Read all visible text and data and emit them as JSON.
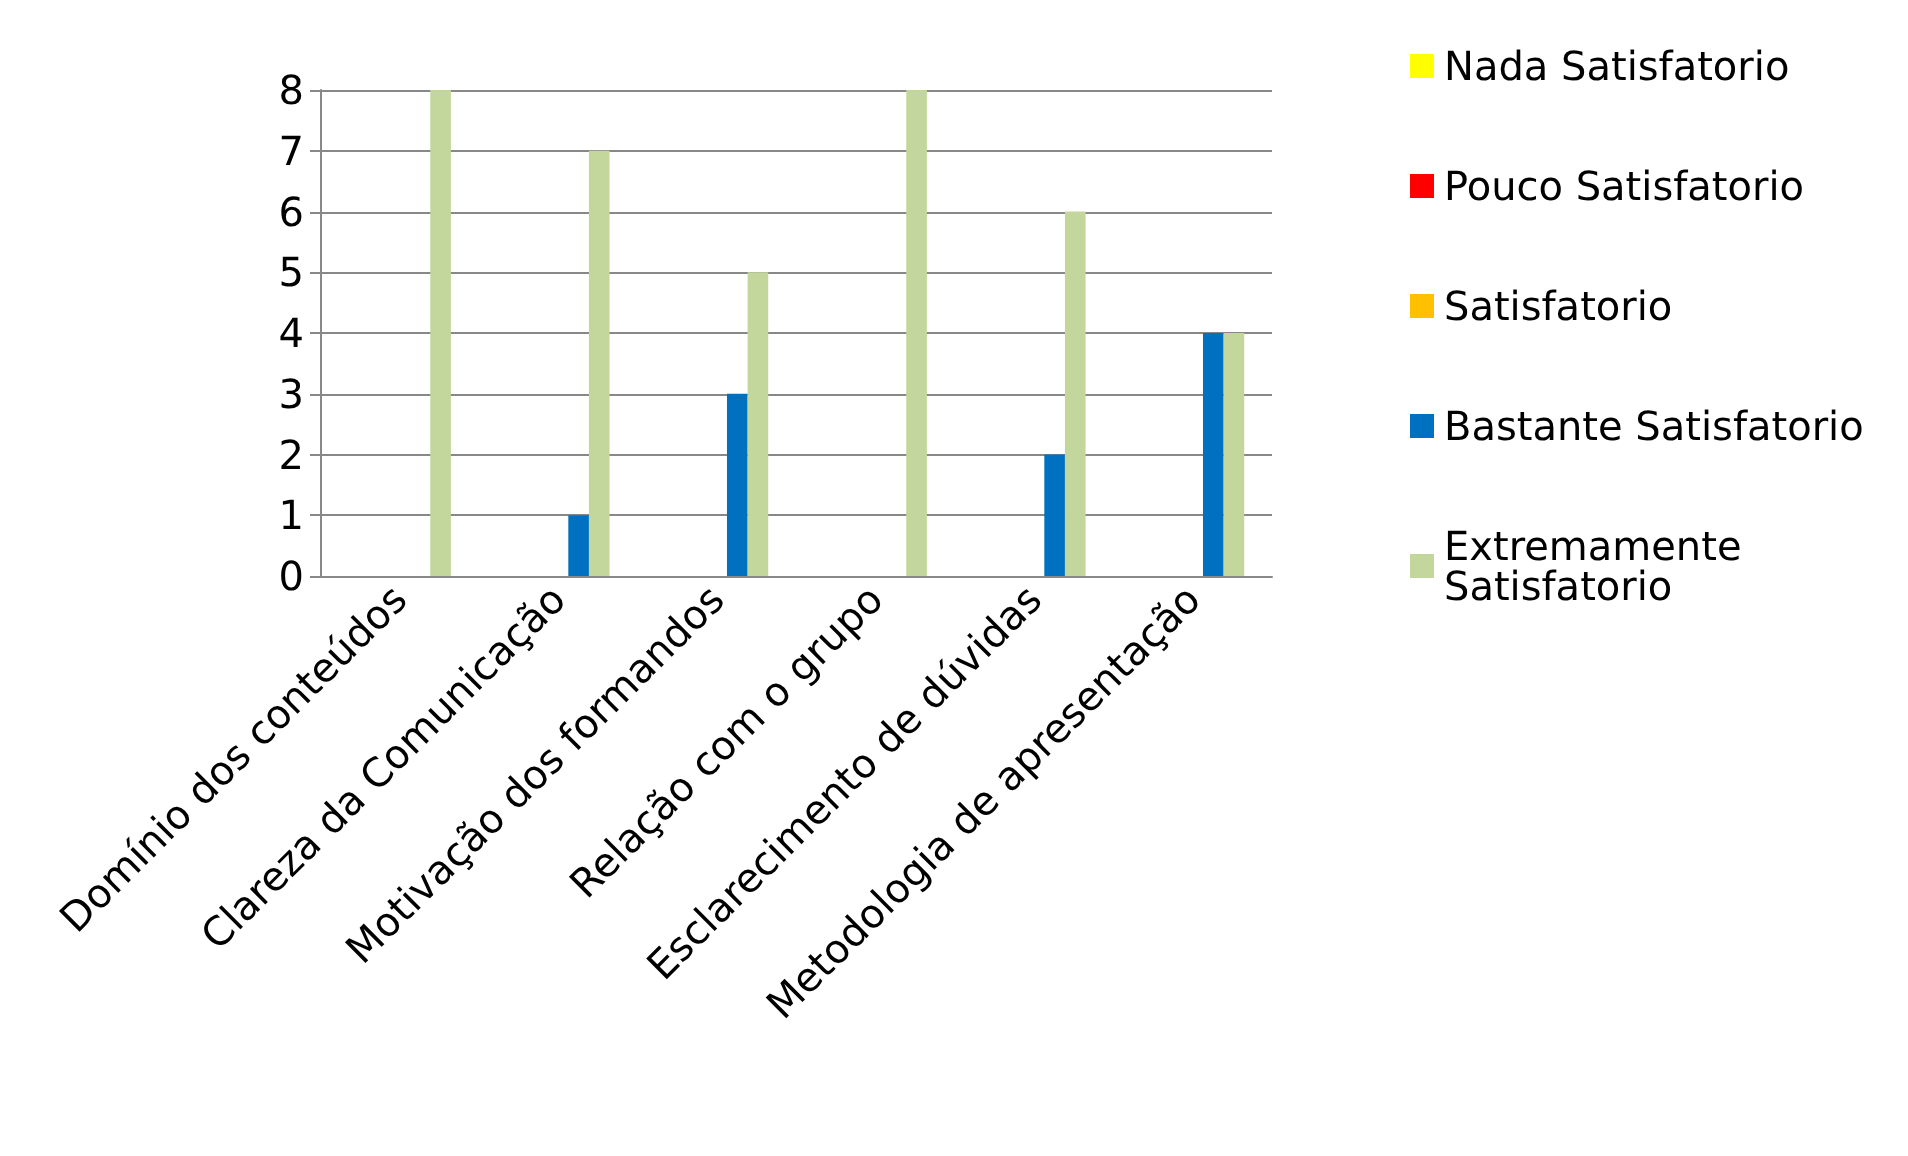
{
  "chart_data": {
    "type": "bar",
    "categories": [
      "Domínio dos conteúdos",
      "Clareza da Comunicação",
      "Motivação dos formandos",
      "Relação com o grupo",
      "Esclarecimento de dúvidas",
      "Metodologia de apresentação"
    ],
    "series": [
      {
        "name": "Nada Satisfatorio",
        "color": "#ffff00",
        "values": [
          0,
          0,
          0,
          0,
          0,
          0
        ]
      },
      {
        "name": "Pouco Satisfatorio",
        "color": "#ff0000",
        "values": [
          0,
          0,
          0,
          0,
          0,
          0
        ]
      },
      {
        "name": "Satisfatorio",
        "color": "#ffc000",
        "values": [
          0,
          0,
          0,
          0,
          0,
          0
        ]
      },
      {
        "name": "Bastante Satisfatorio",
        "color": "#0070c0",
        "values": [
          0,
          1,
          3,
          0,
          2,
          4
        ]
      },
      {
        "name": "Extremamente Satisfatorio",
        "color": "#c3d69b",
        "values": [
          8,
          7,
          5,
          8,
          6,
          4
        ]
      }
    ],
    "ylim": [
      0,
      8
    ],
    "yticks": [
      0,
      1,
      2,
      3,
      4,
      5,
      6,
      7,
      8
    ],
    "grid": "y",
    "legend": "right"
  }
}
